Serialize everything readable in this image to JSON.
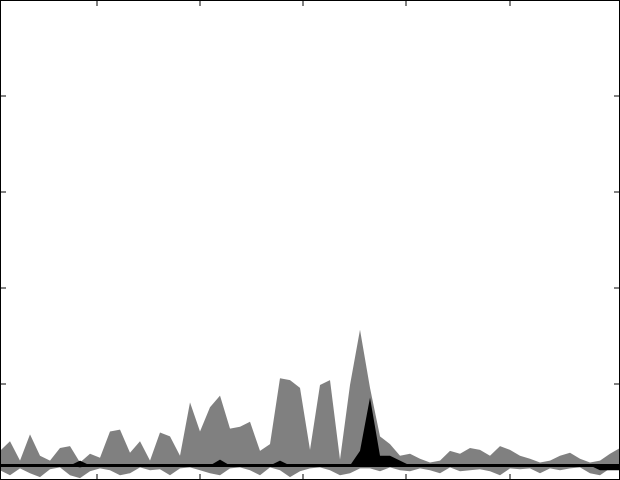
{
  "chart_data": {
    "type": "area",
    "title": "",
    "xlabel": "",
    "ylabel": "",
    "grid": false,
    "legend": "none",
    "xlim": [
      0,
      62
    ],
    "ylim": [
      -1.5,
      48
    ],
    "baseline": 0,
    "x": [
      0,
      1,
      2,
      3,
      4,
      5,
      6,
      7,
      8,
      9,
      10,
      11,
      12,
      13,
      14,
      15,
      16,
      17,
      18,
      19,
      20,
      21,
      22,
      23,
      24,
      25,
      26,
      27,
      28,
      29,
      30,
      31,
      32,
      33,
      34,
      35,
      36,
      37,
      38,
      39,
      40,
      41,
      42,
      43,
      44,
      45,
      46,
      47,
      48,
      49,
      50,
      51,
      52,
      53,
      54,
      55,
      56,
      57,
      58,
      59,
      60,
      61,
      62
    ],
    "series": [
      {
        "color": "#808080",
        "upper": [
          1.5,
          2.5,
          0.5,
          3.2,
          1.0,
          0.5,
          1.8,
          2.0,
          0.3,
          1.2,
          0.8,
          3.5,
          3.7,
          1.3,
          2.5,
          0.5,
          3.4,
          3.0,
          1.0,
          6.5,
          3.5,
          6.0,
          7.2,
          3.8,
          4.0,
          4.5,
          1.5,
          2.2,
          9.0,
          8.8,
          8.0,
          1.6,
          8.3,
          8.8,
          0.6,
          8.3,
          14.0,
          8.0,
          3.0,
          2.2,
          1.0,
          1.2,
          0.7,
          0.3,
          0.5,
          1.5,
          1.2,
          1.8,
          1.6,
          1.0,
          2.0,
          1.6,
          1.0,
          0.7,
          0.3,
          0.5,
          1.0,
          1.3,
          0.7,
          0.3,
          0.5,
          1.2,
          1.8
        ],
        "lower": [
          -0.5,
          -1.0,
          -0.3,
          -0.8,
          -1.2,
          -0.4,
          -0.2,
          -1.0,
          -1.3,
          -0.6,
          -0.3,
          -0.5,
          -1.0,
          -0.8,
          -0.2,
          -0.5,
          -0.4,
          -1.0,
          -0.3,
          -0.2,
          -0.5,
          -0.8,
          -1.0,
          -0.3,
          -0.2,
          -0.5,
          -1.0,
          -0.2,
          -0.5,
          -1.2,
          -0.6,
          -0.3,
          -0.2,
          -0.5,
          -1.0,
          -0.8,
          -0.3,
          -0.3,
          -0.6,
          -0.2,
          -0.5,
          -0.6,
          -0.3,
          -0.5,
          -0.8,
          -0.2,
          -0.6,
          -0.5,
          -0.4,
          -0.6,
          -1.0,
          -0.3,
          -0.4,
          -0.3,
          -0.8,
          -0.3,
          -0.5,
          -0.3,
          -0.2,
          -0.8,
          -1.0,
          -0.3,
          -0.5
        ]
      },
      {
        "color": "#000000",
        "upper": [
          0.0,
          0.0,
          0.0,
          0.0,
          0.0,
          0.0,
          0.0,
          0.0,
          0.5,
          0.0,
          0.0,
          0.0,
          0.0,
          0.0,
          0.0,
          0.0,
          0.0,
          0.0,
          0.0,
          0.0,
          0.0,
          0.0,
          0.6,
          0.0,
          0.0,
          0.0,
          0.0,
          0.0,
          0.5,
          0.0,
          0.0,
          0.0,
          0.0,
          0.0,
          0.0,
          0.0,
          1.5,
          7.0,
          1.0,
          1.0,
          0.5,
          0.0,
          0.0,
          0.0,
          0.0,
          0.0,
          0.0,
          0.0,
          0.0,
          0.0,
          0.0,
          0.0,
          0.0,
          0.0,
          0.0,
          0.0,
          0.0,
          0.0,
          0.0,
          0.0,
          0.0,
          0.0,
          0.0
        ],
        "lower": [
          0.0,
          0.0,
          0.0,
          0.0,
          0.0,
          0.0,
          0.0,
          0.0,
          -0.2,
          0.0,
          0.0,
          0.0,
          0.0,
          0.0,
          0.0,
          0.0,
          0.0,
          0.0,
          0.0,
          0.0,
          0.0,
          0.0,
          0.0,
          0.0,
          0.0,
          0.0,
          0.0,
          0.0,
          0.0,
          0.0,
          0.0,
          0.0,
          0.0,
          0.0,
          0.0,
          0.0,
          0.0,
          0.0,
          0.0,
          0.0,
          0.0,
          0.0,
          0.0,
          0.0,
          0.0,
          0.0,
          0.0,
          0.0,
          0.0,
          0.0,
          0.0,
          0.0,
          0.0,
          0.0,
          0.0,
          0.0,
          0.0,
          0.0,
          0.0,
          0.0,
          -0.5,
          -0.5,
          -0.5
        ]
      }
    ]
  }
}
